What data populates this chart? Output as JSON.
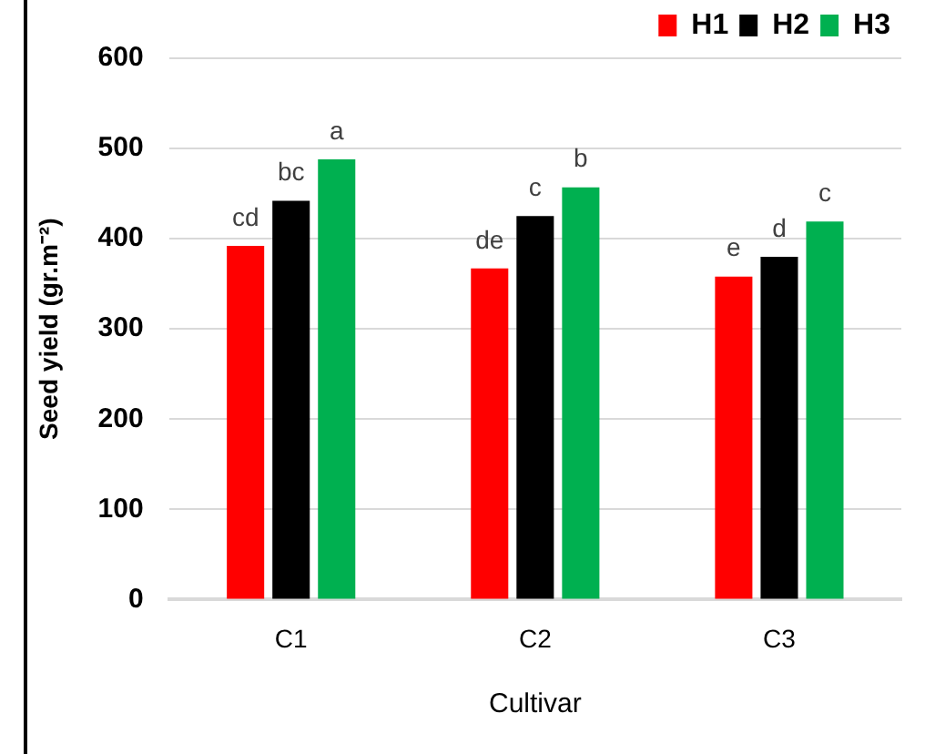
{
  "chart_data": {
    "type": "bar",
    "xlabel": "Cultivar",
    "ylabel": "Seed yield (gr.m⁻²)",
    "categories": [
      "C1",
      "C2",
      "C3"
    ],
    "series": [
      {
        "name": "H1",
        "color": "#ff0000",
        "values": [
          392,
          367,
          358
        ],
        "value_labels": [
          "cd",
          "de",
          "e"
        ]
      },
      {
        "name": "H2",
        "color": "#000000",
        "values": [
          442,
          425,
          380
        ],
        "value_labels": [
          "bc",
          "c",
          "d"
        ]
      },
      {
        "name": "H3",
        "color": "#00b050",
        "values": [
          488,
          457,
          419
        ],
        "value_labels": [
          "a",
          "b",
          "c"
        ]
      }
    ],
    "ylim": [
      0,
      600
    ],
    "yticks": [
      0,
      100,
      200,
      300,
      400,
      500,
      600
    ],
    "grid": "y",
    "legend": "top right"
  }
}
